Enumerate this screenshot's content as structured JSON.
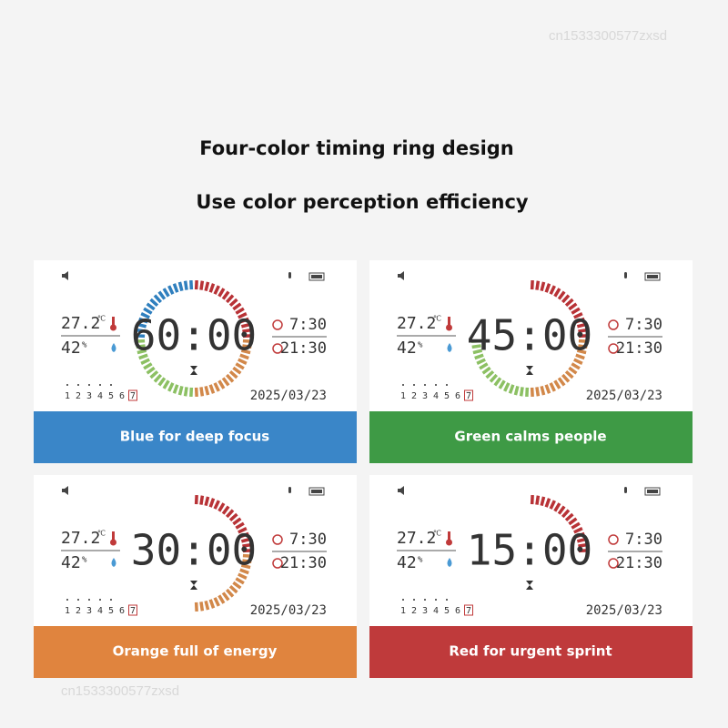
{
  "watermark": "cn1533300577zxsd",
  "header": {
    "title": "Four-color timing ring design",
    "subtitle": "Use color perception efficiency"
  },
  "panels": [
    {
      "temperature": "27.2",
      "temp_unit": "℃",
      "humidity": "42",
      "humidity_unit": "%",
      "timer": "60:00",
      "alarm1": "7:30",
      "alarm2": "21:30",
      "date": "2025/03/23",
      "weekdays": [
        "1",
        "2",
        "3",
        "4",
        "5",
        "6",
        "7"
      ],
      "caption": "Blue for deep focus"
    },
    {
      "temperature": "27.2",
      "temp_unit": "℃",
      "humidity": "42",
      "humidity_unit": "%",
      "timer": "45:00",
      "alarm1": "7:30",
      "alarm2": "21:30",
      "date": "2025/03/23",
      "weekdays": [
        "1",
        "2",
        "3",
        "4",
        "5",
        "6",
        "7"
      ],
      "caption": "Green calms people"
    },
    {
      "temperature": "27.2",
      "temp_unit": "℃",
      "humidity": "42",
      "humidity_unit": "%",
      "timer": "30:00",
      "alarm1": "7:30",
      "alarm2": "21:30",
      "date": "2025/03/23",
      "weekdays": [
        "1",
        "2",
        "3",
        "4",
        "5",
        "6",
        "7"
      ],
      "caption": "Orange full of energy"
    },
    {
      "temperature": "27.2",
      "temp_unit": "℃",
      "humidity": "42",
      "humidity_unit": "%",
      "timer": "15:00",
      "alarm1": "7:30",
      "alarm2": "21:30",
      "date": "2025/03/23",
      "weekdays": [
        "1",
        "2",
        "3",
        "4",
        "5",
        "6",
        "7"
      ],
      "caption": "Red for urgent sprint"
    }
  ]
}
